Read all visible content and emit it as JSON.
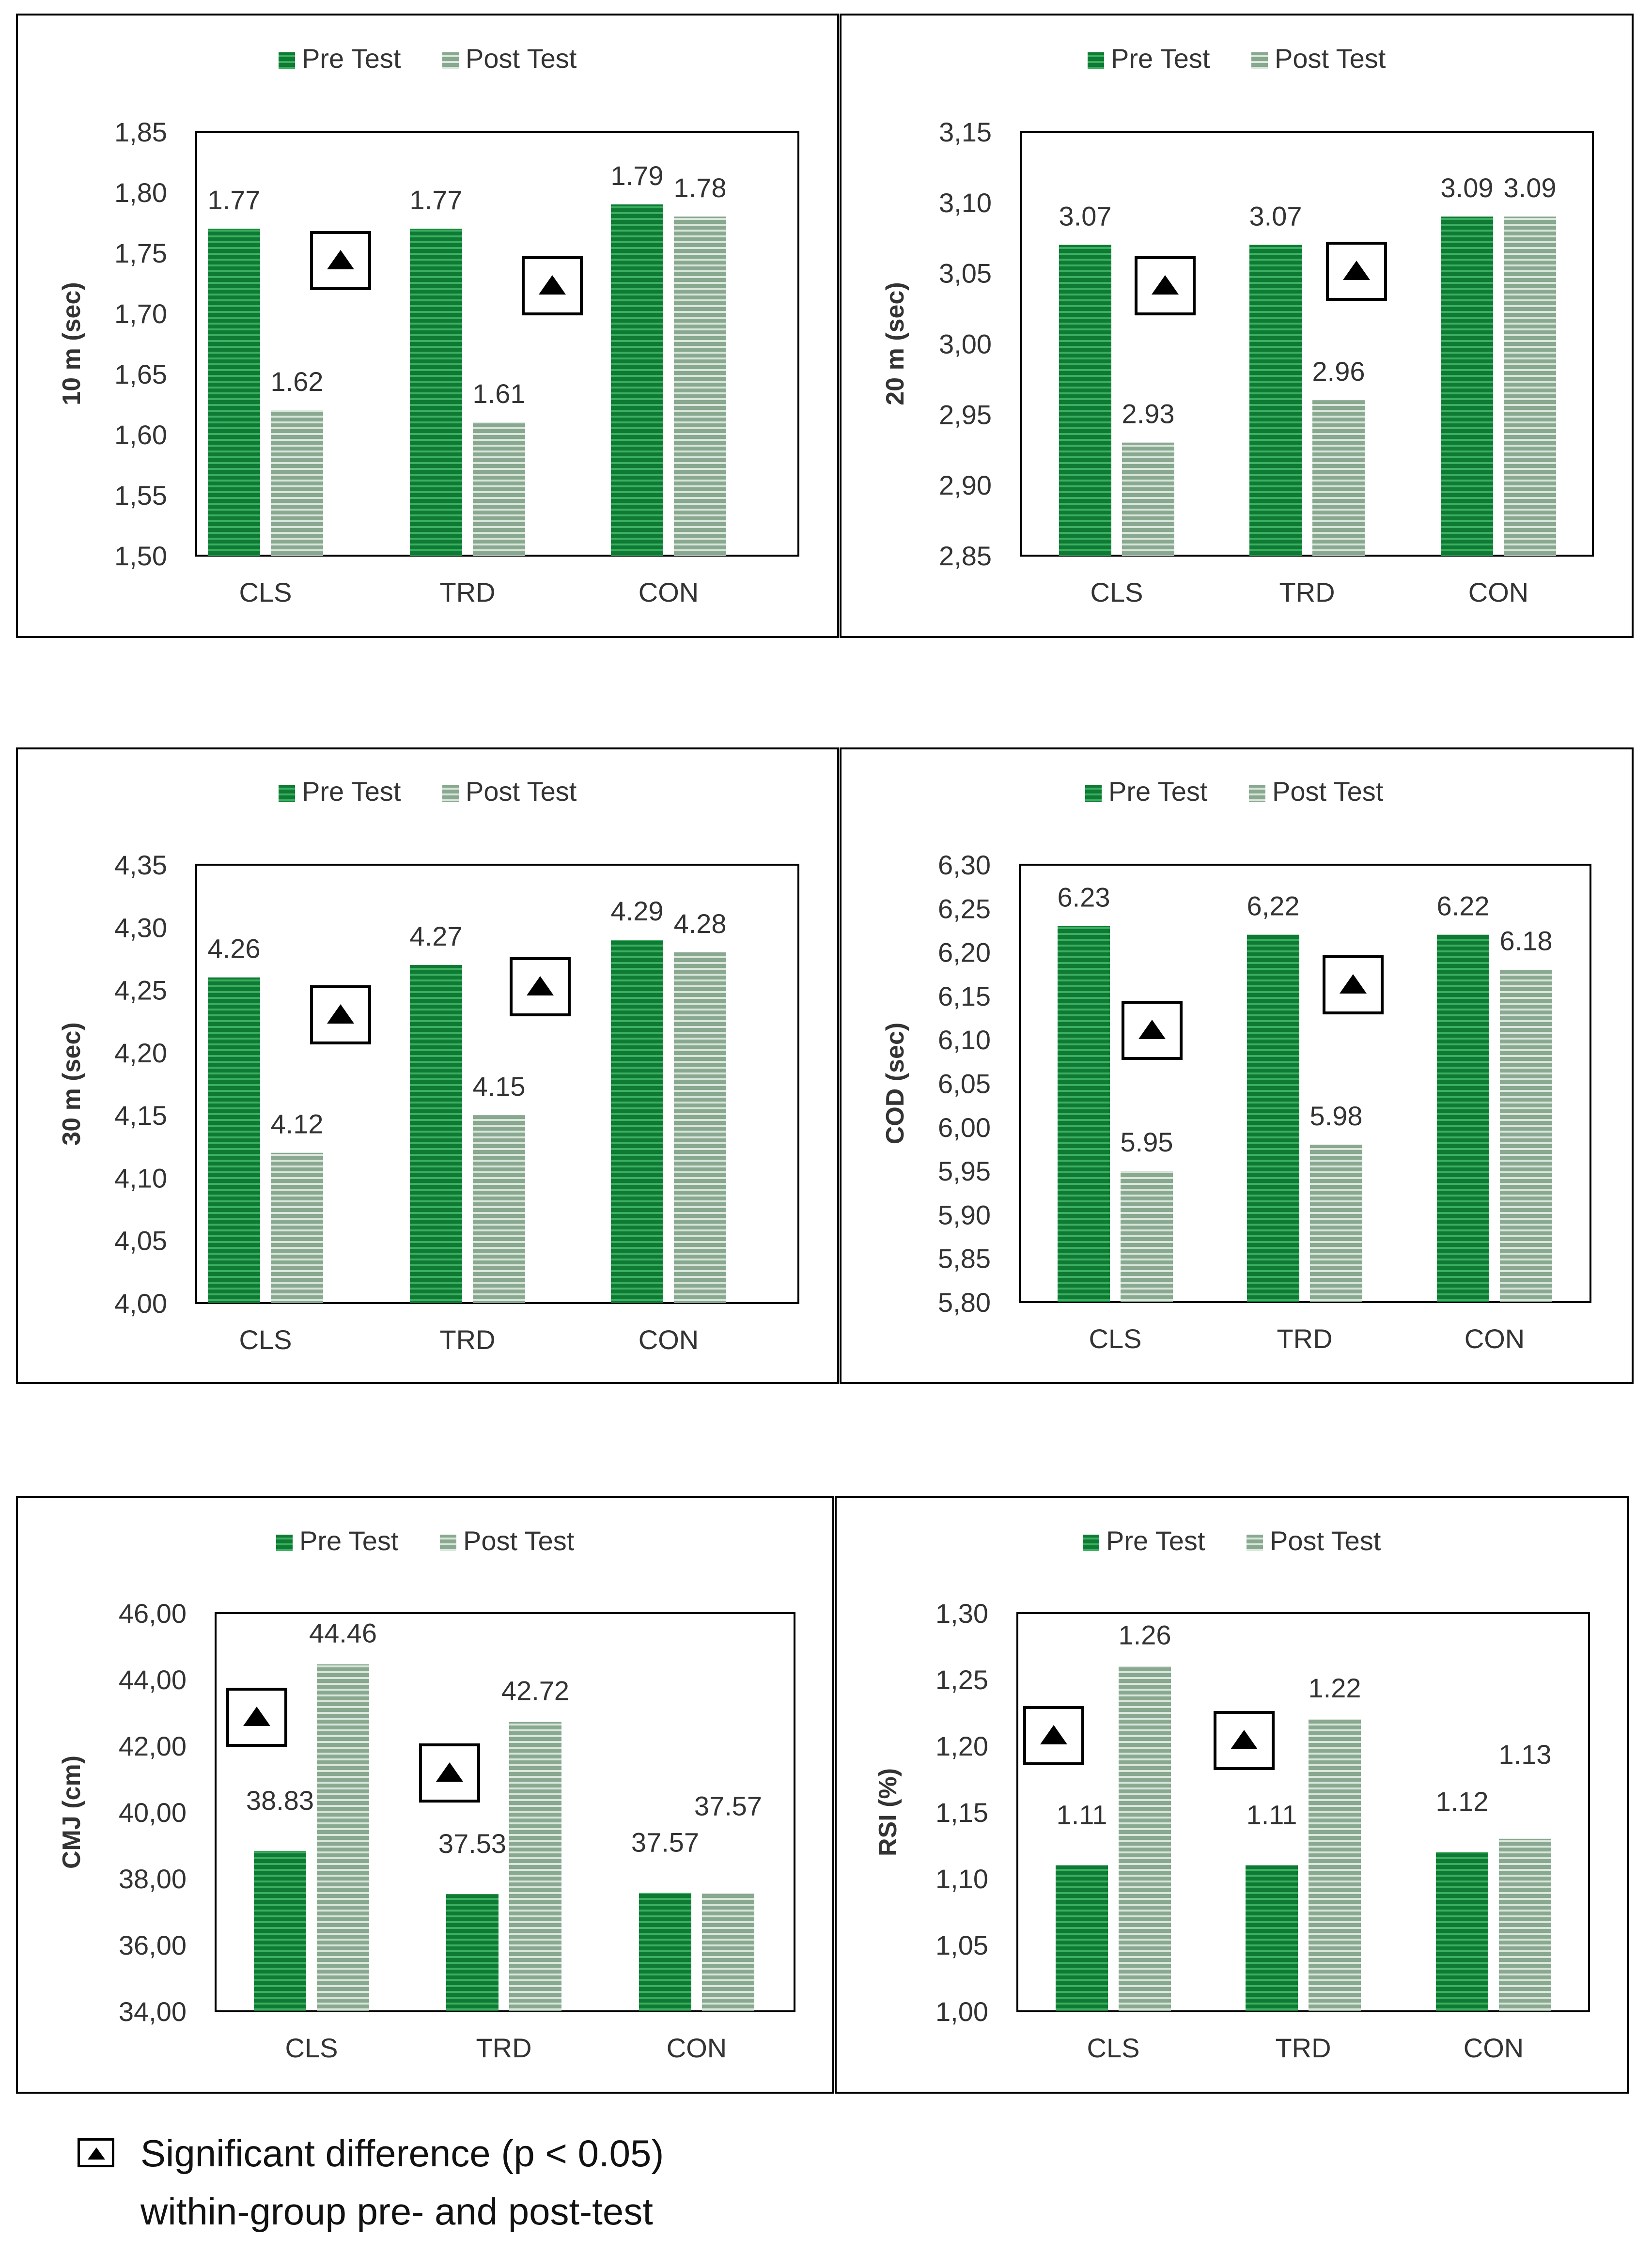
{
  "colors": {
    "pre": "#0f7a33",
    "pre_stripe": "#3cb062",
    "post": "#88a88f",
    "post_stripe": "#dbe7dd",
    "frame": "#000000",
    "text": "#333333"
  },
  "chart_data": [
    {
      "type": "bar",
      "ylabel": "10 m (sec)",
      "categories": [
        "CLS",
        "TRD",
        "CON"
      ],
      "ylim": [
        1.5,
        1.85
      ],
      "yticks": [
        "1,50",
        "1,55",
        "1,60",
        "1,65",
        "1,70",
        "1,75",
        "1,80",
        "1,85"
      ],
      "series": [
        {
          "name": "Pre Test",
          "values": [
            1.77,
            1.77,
            1.79
          ],
          "labels": [
            "1.77",
            "1.77",
            "1.79"
          ]
        },
        {
          "name": "Post Test",
          "values": [
            1.62,
            1.61,
            1.78
          ],
          "labels": [
            "1.62",
            "1.61",
            "1.78"
          ]
        }
      ],
      "significant": [
        true,
        true,
        false
      ]
    },
    {
      "type": "bar",
      "ylabel": "20 m (sec)",
      "categories": [
        "CLS",
        "TRD",
        "CON"
      ],
      "ylim": [
        2.85,
        3.15
      ],
      "yticks": [
        "2,85",
        "2,90",
        "2,95",
        "3,00",
        "3,05",
        "3,10",
        "3,15"
      ],
      "series": [
        {
          "name": "Pre Test",
          "values": [
            3.07,
            3.07,
            3.09
          ],
          "labels": [
            "3.07",
            "3.07",
            "3.09"
          ]
        },
        {
          "name": "Post Test",
          "values": [
            2.93,
            2.96,
            3.09
          ],
          "labels": [
            "2.93",
            "2.96",
            "3.09"
          ]
        }
      ],
      "significant": [
        true,
        true,
        false
      ]
    },
    {
      "type": "bar",
      "ylabel": "30 m (sec)",
      "categories": [
        "CLS",
        "TRD",
        "CON"
      ],
      "ylim": [
        4.0,
        4.35
      ],
      "yticks": [
        "4,00",
        "4,05",
        "4,10",
        "4,15",
        "4,20",
        "4,25",
        "4,30",
        "4,35"
      ],
      "series": [
        {
          "name": "Pre Test",
          "values": [
            4.26,
            4.27,
            4.29
          ],
          "labels": [
            "4.26",
            "4.27",
            "4.29"
          ]
        },
        {
          "name": "Post Test",
          "values": [
            4.12,
            4.15,
            4.28
          ],
          "labels": [
            "4.12",
            "4.15",
            "4.28"
          ]
        }
      ],
      "significant": [
        true,
        true,
        false
      ]
    },
    {
      "type": "bar",
      "ylabel": "COD (sec)",
      "categories": [
        "CLS",
        "TRD",
        "CON"
      ],
      "ylim": [
        5.8,
        6.3
      ],
      "yticks": [
        "5,80",
        "5,85",
        "5,90",
        "5,95",
        "6,00",
        "6,05",
        "6,10",
        "6,15",
        "6,20",
        "6,25",
        "6,30"
      ],
      "series": [
        {
          "name": "Pre Test",
          "values": [
            6.23,
            6.22,
            6.22
          ],
          "labels": [
            "6.23",
            "6,22",
            "6.22"
          ]
        },
        {
          "name": "Post Test",
          "values": [
            5.95,
            5.98,
            6.18
          ],
          "labels": [
            "5.95",
            "5.98",
            "6.18"
          ]
        }
      ],
      "significant": [
        true,
        true,
        false
      ]
    },
    {
      "type": "bar",
      "ylabel": "CMJ (cm)",
      "categories": [
        "CLS",
        "TRD",
        "CON"
      ],
      "ylim": [
        34,
        46
      ],
      "yticks": [
        "34,00",
        "36,00",
        "38,00",
        "40,00",
        "42,00",
        "44,00",
        "46,00"
      ],
      "series": [
        {
          "name": "Pre Test",
          "values": [
            38.83,
            37.53,
            37.57
          ],
          "labels": [
            "38.83",
            "37.53",
            "37.57"
          ]
        },
        {
          "name": "Post Test",
          "values": [
            44.46,
            42.72,
            37.57
          ],
          "labels": [
            "44.46",
            "42.72",
            "37.57"
          ]
        }
      ],
      "significant": [
        true,
        true,
        false
      ]
    },
    {
      "type": "bar",
      "ylabel": "RSI (%)",
      "categories": [
        "CLS",
        "TRD",
        "CON"
      ],
      "ylim": [
        1.0,
        1.3
      ],
      "yticks": [
        "1,00",
        "1,05",
        "1,10",
        "1,15",
        "1,20",
        "1,25",
        "1,30"
      ],
      "series": [
        {
          "name": "Pre Test",
          "values": [
            1.11,
            1.11,
            1.12
          ],
          "labels": [
            "1.11",
            "1.11",
            "1.12"
          ]
        },
        {
          "name": "Post Test",
          "values": [
            1.26,
            1.22,
            1.13
          ],
          "labels": [
            "1.26",
            "1.22",
            "1.13"
          ]
        }
      ],
      "significant": [
        true,
        true,
        false
      ]
    }
  ],
  "footnote": {
    "line1": "Significant difference (p < 0.05)",
    "line2": "within-group pre- and post-test"
  }
}
